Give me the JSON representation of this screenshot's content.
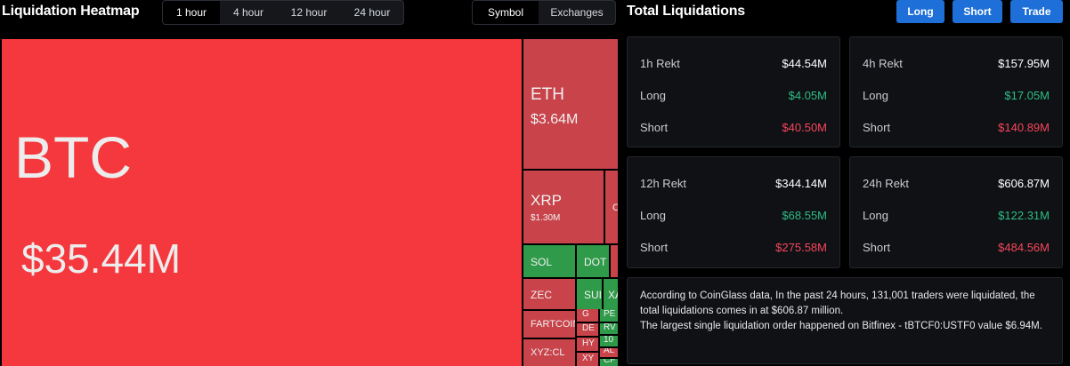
{
  "header": {
    "heatmap_title": "Liquidation Heatmap",
    "time_tabs": [
      {
        "label": "1 hour",
        "active": true
      },
      {
        "label": "4 hour",
        "active": false
      },
      {
        "label": "12 hour",
        "active": false
      },
      {
        "label": "24 hour",
        "active": false
      }
    ],
    "view_tabs": [
      {
        "label": "Symbol",
        "active": true
      },
      {
        "label": "Exchanges",
        "active": false
      }
    ],
    "total_title": "Total Liquidations",
    "buttons": {
      "long": "Long",
      "short": "Short",
      "trade": "Trade"
    }
  },
  "colors": {
    "accent": "#1e6fd8",
    "long": "#2ebd85",
    "short": "#f6465d",
    "tile_red": "#f5383d",
    "tile_green": "#2f9a49"
  },
  "heatmap": {
    "btc": {
      "symbol": "BTC",
      "value": "$35.44M"
    },
    "eth": {
      "symbol": "ETH",
      "value": "$3.64M"
    },
    "xrp": {
      "symbol": "XRP",
      "value": "$1.30M"
    },
    "sol": {
      "symbol": "SOL"
    },
    "dot": {
      "symbol": "DOT"
    },
    "zec": {
      "symbol": "ZEC"
    },
    "sui": {
      "symbol": "SUI"
    },
    "xa": {
      "symbol": "XA"
    },
    "fartcoin": {
      "symbol": "FARTCOIN"
    },
    "xyzcl": {
      "symbol": "XYZ:CL"
    },
    "g": {
      "symbol": "G"
    },
    "pe": {
      "symbol": "PE"
    },
    "de": {
      "symbol": "DE"
    },
    "rv": {
      "symbol": "RV"
    },
    "hy": {
      "symbol": "HY"
    },
    "ten": {
      "symbol": "10"
    },
    "al": {
      "symbol": "AL"
    },
    "xy": {
      "symbol": "XY"
    },
    "cf": {
      "symbol": "CF"
    },
    "c": {
      "symbol": "C"
    }
  },
  "stats": {
    "h1": {
      "title": "1h Rekt",
      "total": "$44.54M",
      "long_label": "Long",
      "long": "$4.05M",
      "short_label": "Short",
      "short": "$40.50M"
    },
    "h4": {
      "title": "4h Rekt",
      "total": "$157.95M",
      "long_label": "Long",
      "long": "$17.05M",
      "short_label": "Short",
      "short": "$140.89M"
    },
    "h12": {
      "title": "12h Rekt",
      "total": "$344.14M",
      "long_label": "Long",
      "long": "$68.55M",
      "short_label": "Short",
      "short": "$275.58M"
    },
    "h24": {
      "title": "24h Rekt",
      "total": "$606.87M",
      "long_label": "Long",
      "long": "$122.31M",
      "short_label": "Short",
      "short": "$484.56M"
    }
  },
  "info": {
    "line1": "According to CoinGlass data, In the past 24 hours, 131,001 traders were liquidated, the total liquidations comes in at $606.87 million.",
    "line2": "The largest single liquidation order happened on Bitfinex - tBTCF0:USTF0 value $6.94M."
  }
}
